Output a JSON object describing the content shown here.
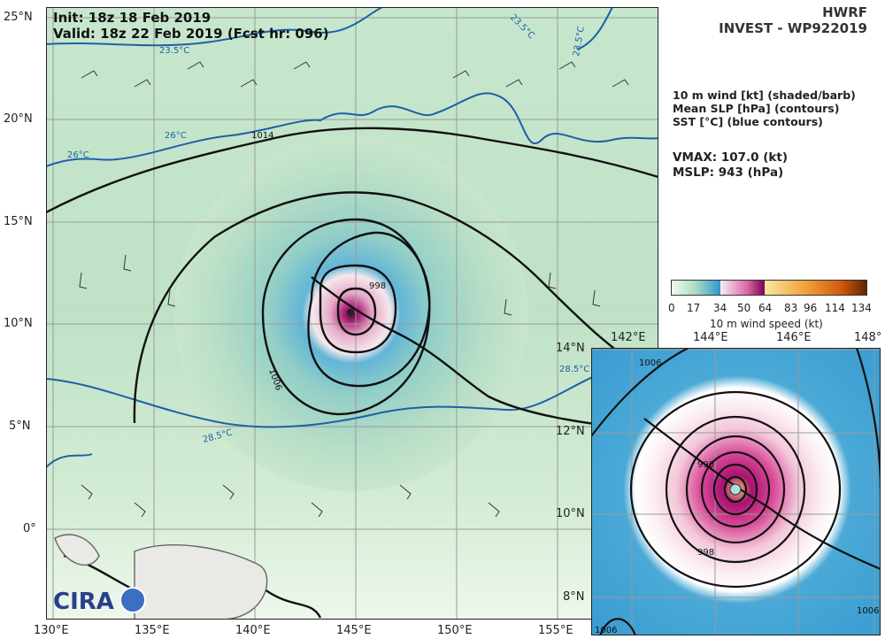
{
  "header": {
    "init": "Init:   18z 18 Feb 2019",
    "valid": "Valid: 18z 22 Feb 2019 (Fcst hr: 096)",
    "model": "HWRF",
    "storm": "INVEST - WP922019"
  },
  "legend": {
    "lines": [
      "10 m wind [kt] (shaded/barb)",
      "Mean SLP [hPa] (contours)",
      "SST [°C] (blue contours)"
    ],
    "vmax": "VMAX: 107.0 (kt)",
    "mslp": "MSLP:  943 (hPa)"
  },
  "colorbar": {
    "ticks": [
      "0",
      "17",
      "34",
      "50",
      "64",
      "83",
      "96",
      "114",
      "134"
    ],
    "label": "10 m wind speed (kt)",
    "colors": [
      "#f4faf2",
      "#cfe9cf",
      "#8ecbc4",
      "#3f9fd1",
      "#f2f0f6",
      "#e9a0c8",
      "#b0127a",
      "#f5d27a",
      "#f0a23a",
      "#d9620c",
      "#7a2e04"
    ]
  },
  "main_map": {
    "lat_ticks": [
      "25°N",
      "20°N",
      "15°N",
      "10°N",
      "5°N",
      "0°"
    ],
    "lon_ticks": [
      "130°E",
      "135°E",
      "140°E",
      "145°E",
      "150°E",
      "155°E"
    ],
    "contour_labels": [
      "1014",
      "1006",
      "998"
    ],
    "sst_labels": [
      "23.5°C",
      "23.5°C",
      "23.5°C",
      "26°C",
      "26°C",
      "28.5°C",
      "28.5°C"
    ]
  },
  "inset_map": {
    "lat_ticks": [
      "14°N",
      "12°N",
      "10°N",
      "8°N"
    ],
    "lon_ticks": [
      "142°E",
      "144°E",
      "146°E",
      "148°"
    ],
    "contour_labels": [
      "1006",
      "990",
      "998",
      "1006",
      "1006"
    ]
  },
  "logo": {
    "text": "CIRA"
  }
}
